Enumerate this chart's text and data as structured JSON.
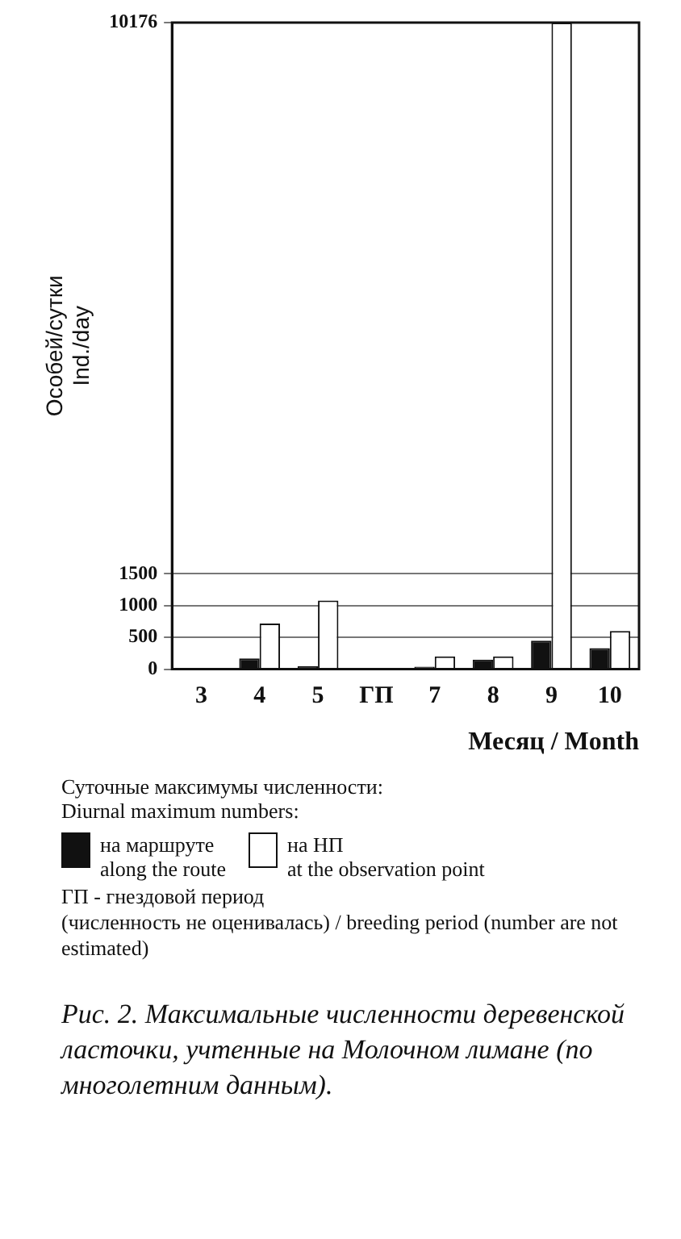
{
  "chart_data": {
    "type": "bar",
    "xlabel": "Месяц / Month",
    "ylabel": "Особей/сутки\nInd./day",
    "categories": [
      "3",
      "4",
      "5",
      "ГП",
      "7",
      "8",
      "9",
      "10"
    ],
    "series": [
      {
        "name": "на маршруте\nalong the route",
        "color": "#111111",
        "values": [
          0,
          170,
          50,
          null,
          40,
          150,
          450,
          330
        ]
      },
      {
        "name": "на НП\nat the observation point",
        "color": "#ffffff",
        "values": [
          0,
          720,
          1080,
          null,
          200,
          200,
          10176,
          600
        ]
      }
    ],
    "ylim": [
      0,
      10176
    ],
    "yticks": [
      0,
      500,
      1000,
      1500,
      10176
    ],
    "grid": "y",
    "legend": "bottom",
    "legend_title": "Суточные максимумы численности:\nDiurnal maximum numbers:",
    "annotations": [
      "ГП - гнездовой период\n(численность не оценивалась) / breeding period (number are not estimated)",
      "Рис. 2. Максимальные численности деревенской ласточки, учтенные на Молочном лимане (по многолетним данным)."
    ]
  }
}
